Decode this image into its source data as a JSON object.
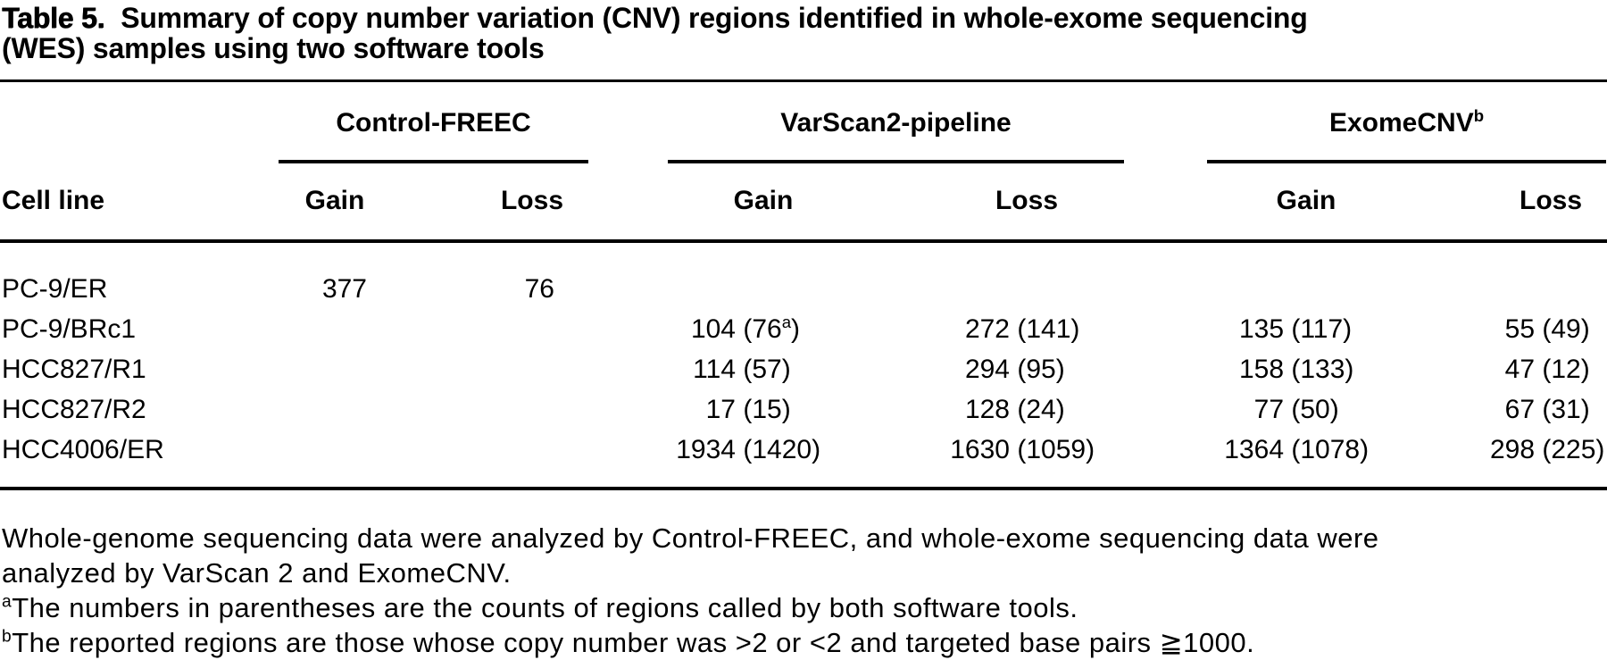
{
  "colors": {
    "text": "#000000",
    "rule": "#000000",
    "background": "#ffffff"
  },
  "title": {
    "label": "Table 5.",
    "line1_rest": "Summary of copy number variation (CNV) regions identified in whole-exome sequencing",
    "line2": "(WES) samples using two software tools"
  },
  "table": {
    "row_header": "Cell line",
    "groups": [
      {
        "label": "Control-FREEC",
        "columns": [
          "Gain",
          "Loss"
        ]
      },
      {
        "label": "VarScan2-pipeline",
        "columns": [
          "Gain",
          "Loss"
        ]
      },
      {
        "label": "ExomeCNV",
        "sup": "b",
        "columns": [
          "Gain",
          "Loss"
        ]
      }
    ],
    "rows": [
      {
        "cell_line": "PC-9/ER",
        "values": [
          {
            "num": "377"
          },
          {
            "num": "76"
          },
          {},
          {},
          {},
          {}
        ]
      },
      {
        "cell_line": "PC-9/BRc1",
        "values": [
          {},
          {},
          {
            "num": "104",
            "paren": "76",
            "sup": "a"
          },
          {
            "num": "272",
            "paren": "141"
          },
          {
            "num": "135",
            "paren": "117"
          },
          {
            "num": "55",
            "paren": "49"
          }
        ]
      },
      {
        "cell_line": "HCC827/R1",
        "values": [
          {},
          {},
          {
            "num": "114",
            "paren": "57"
          },
          {
            "num": "294",
            "paren": "95"
          },
          {
            "num": "158",
            "paren": "133"
          },
          {
            "num": "47",
            "paren": "12"
          }
        ]
      },
      {
        "cell_line": "HCC827/R2",
        "values": [
          {},
          {},
          {
            "num": "17",
            "paren": "15"
          },
          {
            "num": "128",
            "paren": "24"
          },
          {
            "num": "77",
            "paren": "50"
          },
          {
            "num": "67",
            "paren": "31"
          }
        ]
      },
      {
        "cell_line": "HCC4006/ER",
        "values": [
          {},
          {},
          {
            "num": "1934",
            "paren": "1420"
          },
          {
            "num": "1630",
            "paren": "1059"
          },
          {
            "num": "1364",
            "paren": "1078"
          },
          {
            "num": "298",
            "paren": "225"
          }
        ]
      }
    ]
  },
  "footnotes": {
    "general_lines": [
      "Whole-genome sequencing data were analyzed by Control-FREEC, and whole-exome sequencing data were",
      "analyzed by VarScan 2 and ExomeCNV."
    ],
    "a": {
      "sup": "a",
      "text": "The numbers in parentheses are the counts of regions called by both software tools."
    },
    "b": {
      "sup": "b",
      "text": "The reported regions are those whose copy number was >2 or <2 and targeted base pairs ≧1000."
    }
  }
}
